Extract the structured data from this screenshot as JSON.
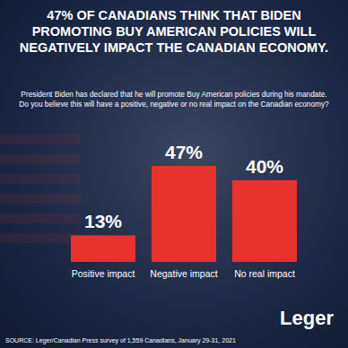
{
  "chart_data": {
    "type": "bar",
    "title": "47% OF CANADIANS THINK THAT BIDEN PROMOTING BUY AMERICAN POLICIES WILL NEGATIVELY IMPACT THE CANADIAN ECONOMY.",
    "subtitle": "President Biden has declared that he will promote Buy American policies during his mandate. Do you believe this will have a positive, negative or no real impact on the Canadian economy?",
    "categories": [
      "Positive impact",
      "Negative impact",
      "No real impact"
    ],
    "values": [
      13,
      47,
      40
    ],
    "value_labels": [
      "13%",
      "47%",
      "40%"
    ],
    "color": "#e8322b",
    "data_labels": true,
    "tick_labels": "x",
    "source": "SOURCE: Leger/Canadian Press survey of 1,559 Canadians, January 29-31, 2021",
    "logo": "Leger"
  }
}
